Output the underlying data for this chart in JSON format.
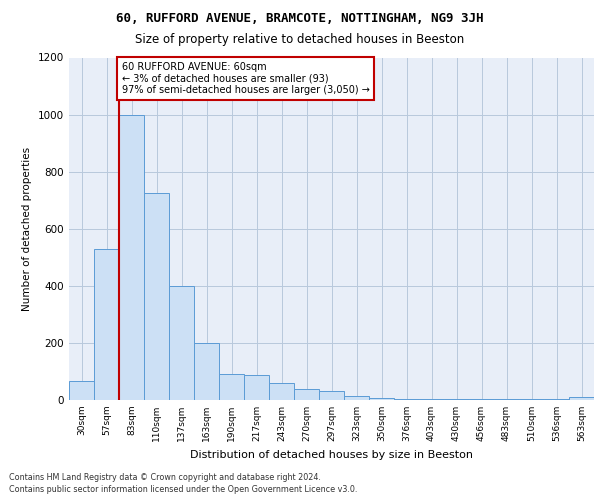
{
  "title1": "60, RUFFORD AVENUE, BRAMCOTE, NOTTINGHAM, NG9 3JH",
  "title2": "Size of property relative to detached houses in Beeston",
  "xlabel": "Distribution of detached houses by size in Beeston",
  "ylabel": "Number of detached properties",
  "categories": [
    "30sqm",
    "57sqm",
    "83sqm",
    "110sqm",
    "137sqm",
    "163sqm",
    "190sqm",
    "217sqm",
    "243sqm",
    "270sqm",
    "297sqm",
    "323sqm",
    "350sqm",
    "376sqm",
    "403sqm",
    "430sqm",
    "456sqm",
    "483sqm",
    "510sqm",
    "536sqm",
    "563sqm"
  ],
  "values": [
    65,
    528,
    1000,
    725,
    400,
    198,
    90,
    88,
    58,
    38,
    30,
    15,
    8,
    5,
    3,
    2,
    2,
    2,
    2,
    2,
    12
  ],
  "bar_color": "#cce0f5",
  "bar_edge_color": "#5b9bd5",
  "grid_color": "#b8c8dc",
  "background_color": "#e8eef8",
  "vline_color": "#c00000",
  "annotation_text": "60 RUFFORD AVENUE: 60sqm\n← 3% of detached houses are smaller (93)\n97% of semi-detached houses are larger (3,050) →",
  "annotation_box_color": "#ffffff",
  "annotation_box_edge": "#c00000",
  "ylim": [
    0,
    1200
  ],
  "yticks": [
    0,
    200,
    400,
    600,
    800,
    1000,
    1200
  ],
  "footer1": "Contains HM Land Registry data © Crown copyright and database right 2024.",
  "footer2": "Contains public sector information licensed under the Open Government Licence v3.0."
}
